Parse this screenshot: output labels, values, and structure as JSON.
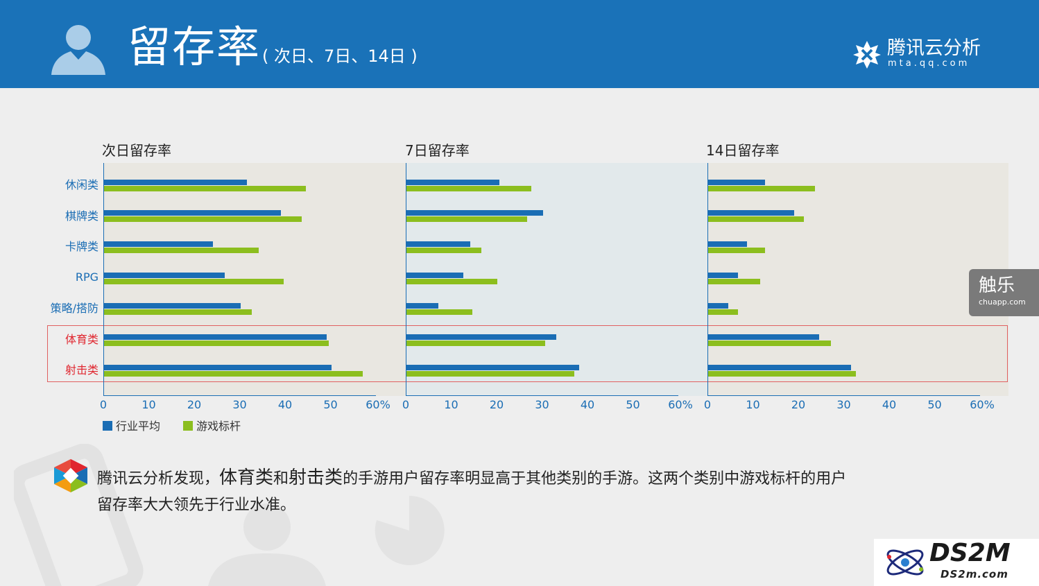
{
  "header": {
    "title": "留存率",
    "subtitle": "( 次日、7日、14日 )",
    "brand_name": "腾讯云分析",
    "brand_url": "mta.qq.com"
  },
  "categories_label": [
    "休闲类",
    "棋牌类",
    "卡牌类",
    "RPG",
    "策略/搭防",
    "体育类",
    "射击类"
  ],
  "highlighted": [
    "体育类",
    "射击类"
  ],
  "legend": {
    "series1": "行业平均",
    "series2": "游戏标杆"
  },
  "colors": {
    "series1": "#1a6db4",
    "series2": "#8cbe1e",
    "header": "#1a72b8",
    "highlight": "#e0262f"
  },
  "chart_data": [
    {
      "type": "bar",
      "title": "次日留存率",
      "categories": [
        "休闲类",
        "棋牌类",
        "卡牌类",
        "RPG",
        "策略/搭防",
        "体育类",
        "射击类"
      ],
      "xlim": [
        0,
        60
      ],
      "ticks": [
        "0",
        "10",
        "20",
        "30",
        "40",
        "50",
        "60%"
      ],
      "series": [
        {
          "name": "行业平均",
          "values": [
            31.5,
            39,
            24,
            26.5,
            30,
            49,
            50
          ]
        },
        {
          "name": "游戏标杆",
          "values": [
            44.5,
            43.5,
            34,
            39.5,
            32.5,
            49.5,
            57
          ]
        }
      ]
    },
    {
      "type": "bar",
      "title": "7日留存率",
      "categories": [
        "休闲类",
        "棋牌类",
        "卡牌类",
        "RPG",
        "策略/搭防",
        "体育类",
        "射击类"
      ],
      "xlim": [
        0,
        60
      ],
      "ticks": [
        "0",
        "10",
        "20",
        "30",
        "40",
        "50",
        "60%"
      ],
      "series": [
        {
          "name": "行业平均",
          "values": [
            20.5,
            30,
            14,
            12.5,
            7,
            33,
            38
          ]
        },
        {
          "name": "游戏标杆",
          "values": [
            27.5,
            26.5,
            16.5,
            20,
            14.5,
            30.5,
            37
          ]
        }
      ]
    },
    {
      "type": "bar",
      "title": "14日留存率",
      "categories": [
        "休闲类",
        "棋牌类",
        "卡牌类",
        "RPG",
        "策略/搭防",
        "体育类",
        "射击类"
      ],
      "xlim": [
        0,
        60
      ],
      "ticks": [
        "0",
        "10",
        "20",
        "30",
        "40",
        "50",
        "60%"
      ],
      "series": [
        {
          "name": "行业平均",
          "values": [
            12.5,
            19,
            8.5,
            6.5,
            4.5,
            24.5,
            31.5
          ]
        },
        {
          "name": "游戏标杆",
          "values": [
            23.5,
            21,
            12.5,
            11.5,
            6.5,
            27,
            32.5
          ]
        }
      ]
    }
  ],
  "note": {
    "part1": "腾讯云分析发现，",
    "strong1": "体育类",
    "part2": "和",
    "strong2": "射击类",
    "part3": "的手游用户留存率明显高于其他类别的手游。这两个类别中游戏标杆的用户",
    "line2": "留存率大大领先于行业水准。"
  },
  "side_badge": {
    "title": "触乐",
    "url": "chuapp.com"
  },
  "watermark": {
    "title": "DS2M",
    "url": "DS2m.com"
  }
}
